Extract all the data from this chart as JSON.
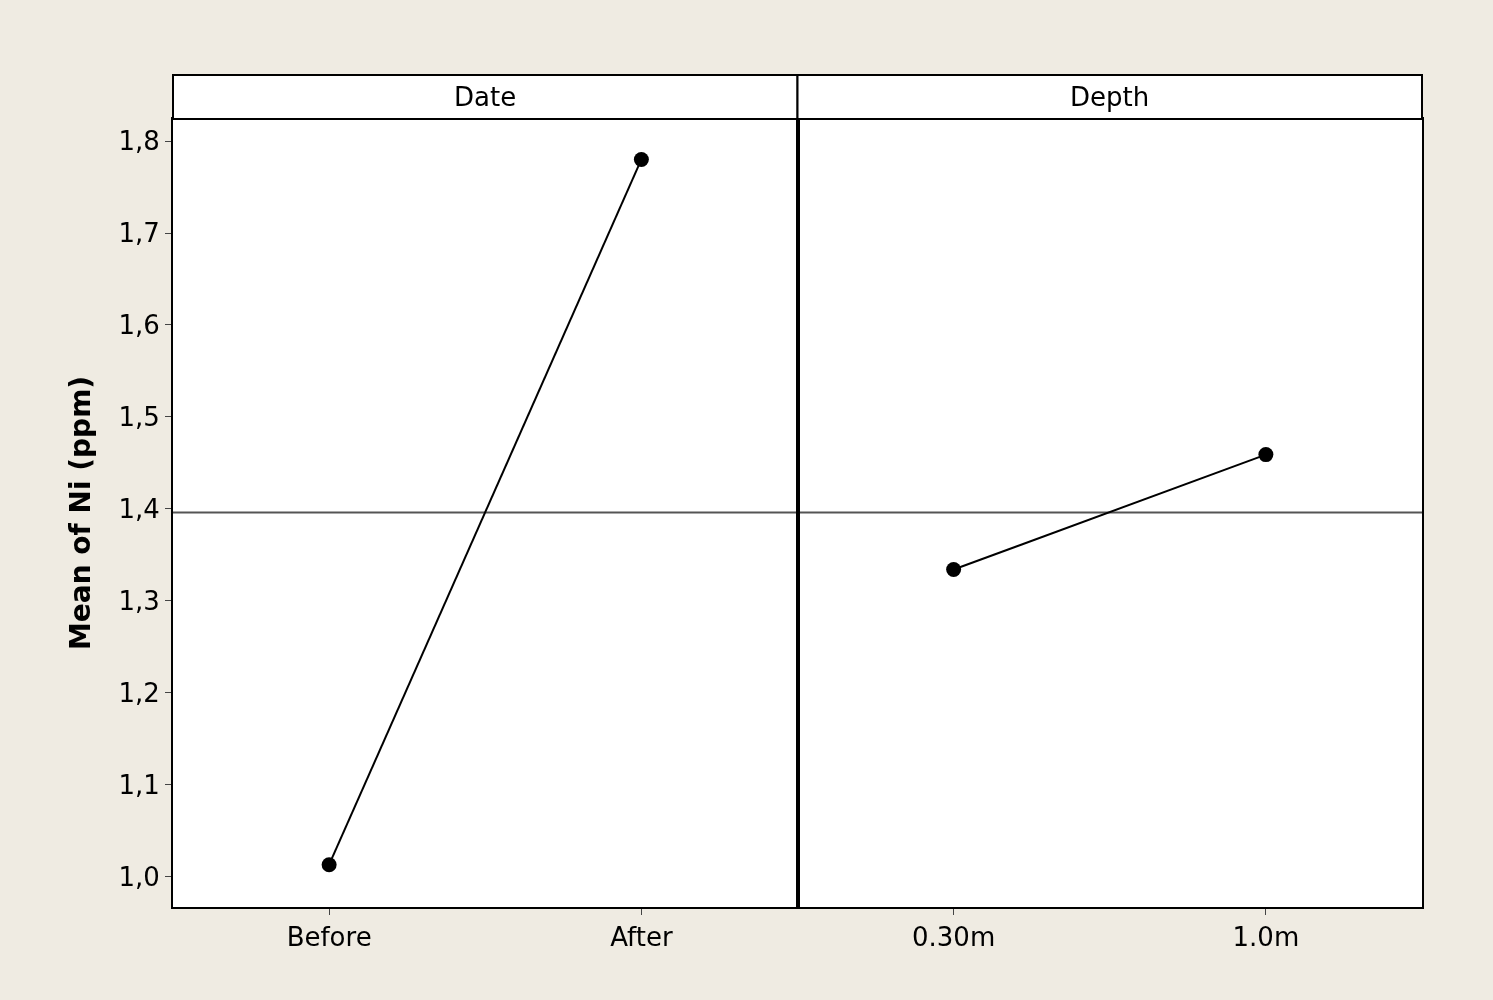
{
  "chart_data": [
    {
      "type": "line",
      "title": "Date",
      "ylabel": "Mean of Ni (ppm)",
      "categories": [
        "Before",
        "After"
      ],
      "values": [
        1.013,
        1.78
      ],
      "color": "#000000",
      "marker": "circle",
      "line_style": "solid",
      "ylim": [
        0.967,
        1.824
      ],
      "yticks": [
        {
          "value": 1.0,
          "label": "1,0"
        },
        {
          "value": 1.1,
          "label": "1,1"
        },
        {
          "value": 1.2,
          "label": "1,2"
        },
        {
          "value": 1.3,
          "label": "1,3"
        },
        {
          "value": 1.4,
          "label": "1,4"
        },
        {
          "value": 1.5,
          "label": "1,5"
        },
        {
          "value": 1.6,
          "label": "1,6"
        },
        {
          "value": 1.7,
          "label": "1,7"
        },
        {
          "value": 1.8,
          "label": "1,8"
        }
      ],
      "ref_lines": [
        {
          "axis": "y",
          "value": 1.396,
          "color": "#555555"
        }
      ],
      "grid": false
    },
    {
      "type": "line",
      "title": "Depth",
      "categories": [
        "0.30m",
        "1.0m"
      ],
      "values": [
        1.334,
        1.459
      ],
      "color": "#000000",
      "marker": "circle",
      "line_style": "solid",
      "ylim": [
        0.967,
        1.824
      ],
      "tick_labels": "x",
      "ref_lines": [
        {
          "axis": "y",
          "value": 1.396,
          "color": "#555555"
        }
      ],
      "grid": false
    }
  ]
}
